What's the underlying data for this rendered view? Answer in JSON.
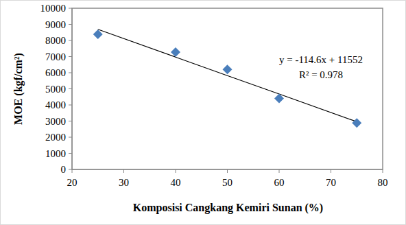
{
  "chart_data": {
    "type": "scatter",
    "x_label": "Komposisi Cangkang Kemiri Sunan (%)",
    "y_label": "MOE (kgf/cm²)",
    "x": [
      25,
      40,
      50,
      60,
      75
    ],
    "series": [
      {
        "type": "scatter",
        "color": "#4a7ebb",
        "marker": "diamond",
        "values": [
          8380,
          7280,
          6200,
          4400,
          2880
        ]
      },
      {
        "type": "line",
        "color": "#000000",
        "line_style": "solid",
        "values": [
          8690,
          6970,
          5820,
          4680,
          2960
        ]
      }
    ],
    "annotations": [
      "y = -114.6x + 11552",
      "R² = 0.978"
    ],
    "xlim": [
      20,
      80
    ],
    "xticks": [
      20,
      30,
      40,
      50,
      60,
      70,
      80
    ],
    "ylim": [
      0,
      10000
    ],
    "yticks": [
      0,
      1000,
      2000,
      3000,
      4000,
      5000,
      6000,
      7000,
      8000,
      9000,
      10000
    ],
    "grid": false
  }
}
